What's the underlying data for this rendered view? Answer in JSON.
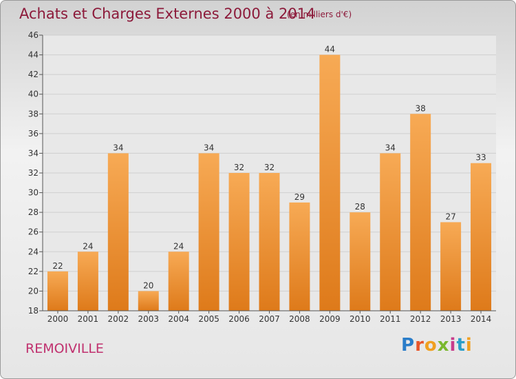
{
  "header": {
    "title": "Achats et Charges Externes 2000 à 2014",
    "subtitle": "(en milliers d'€)"
  },
  "footer": {
    "place": "REMOIVILLE",
    "logo": "Proxiti"
  },
  "colors": {
    "bar_top": "#f7aa55",
    "bar_bottom": "#de7a1a",
    "title": "#8c1a3a"
  },
  "chart_data": {
    "type": "bar",
    "title": "Achats et Charges Externes 2000 à 2014",
    "categories": [
      "2000",
      "2001",
      "2002",
      "2003",
      "2004",
      "2005",
      "2006",
      "2007",
      "2008",
      "2009",
      "2010",
      "2011",
      "2012",
      "2013",
      "2014"
    ],
    "values": [
      22,
      24,
      34,
      20,
      24,
      34,
      32,
      32,
      29,
      44,
      28,
      34,
      38,
      27,
      33
    ],
    "ylim": [
      18,
      46
    ],
    "yticks": [
      18,
      20,
      22,
      24,
      26,
      28,
      30,
      32,
      34,
      36,
      38,
      40,
      42,
      44,
      46
    ],
    "grid": true,
    "legend": "none"
  }
}
